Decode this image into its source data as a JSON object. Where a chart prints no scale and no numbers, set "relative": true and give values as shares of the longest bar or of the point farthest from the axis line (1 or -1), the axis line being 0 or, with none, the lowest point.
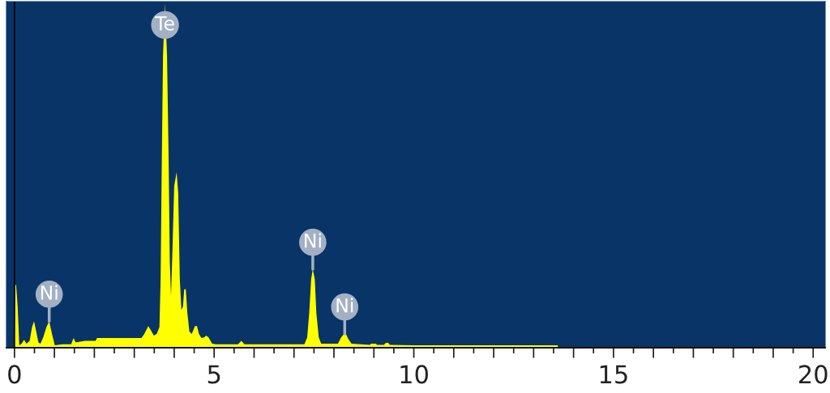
{
  "chart_data": {
    "type": "area",
    "relative": true,
    "x": [
      0.0,
      0.02,
      0.04,
      0.08,
      0.12,
      0.18,
      0.24,
      0.3,
      0.38,
      0.44,
      0.49,
      0.54,
      0.6,
      0.65,
      0.72,
      0.8,
      0.87,
      0.94,
      1.01,
      1.2,
      1.42,
      1.48,
      1.53,
      1.56,
      1.76,
      1.81,
      2.03,
      2.07,
      2.12,
      2.23,
      3.18,
      3.25,
      3.35,
      3.42,
      3.49,
      3.56,
      3.63,
      3.66,
      3.69,
      3.72,
      3.77,
      3.82,
      3.86,
      3.89,
      3.92,
      3.96,
      4.0,
      4.06,
      4.1,
      4.14,
      4.18,
      4.22,
      4.25,
      4.29,
      4.33,
      4.38,
      4.44,
      4.52,
      4.57,
      4.62,
      4.68,
      4.75,
      4.8,
      4.86,
      4.95,
      5.05,
      5.6,
      5.68,
      5.76,
      7.26,
      7.33,
      7.38,
      7.43,
      7.47,
      7.52,
      7.56,
      7.62,
      7.68,
      8.1,
      8.18,
      8.25,
      8.3,
      8.36,
      8.44,
      8.9,
      8.93,
      9.05,
      9.08,
      9.25,
      9.3,
      9.36,
      9.4,
      10.0,
      13.6,
      13.62,
      20.0
    ],
    "series": [
      {
        "color": "#ffff00",
        "values": [
          0.0,
          0.183,
          0.183,
          0.12,
          0.007,
          0.012,
          0.023,
          0.012,
          0.02,
          0.06,
          0.077,
          0.05,
          0.015,
          0.012,
          0.03,
          0.06,
          0.077,
          0.04,
          0.007,
          0.01,
          0.01,
          0.028,
          0.016,
          0.016,
          0.02,
          0.02,
          0.02,
          0.028,
          0.028,
          0.028,
          0.028,
          0.04,
          0.063,
          0.05,
          0.035,
          0.04,
          0.06,
          0.2,
          0.55,
          0.85,
          1.0,
          0.85,
          0.55,
          0.25,
          0.15,
          0.3,
          0.47,
          0.51,
          0.45,
          0.2,
          0.11,
          0.12,
          0.17,
          0.17,
          0.1,
          0.047,
          0.04,
          0.063,
          0.063,
          0.04,
          0.028,
          0.03,
          0.035,
          0.03,
          0.012,
          0.01,
          0.01,
          0.02,
          0.01,
          0.01,
          0.03,
          0.1,
          0.2,
          0.228,
          0.2,
          0.1,
          0.03,
          0.012,
          0.012,
          0.03,
          0.04,
          0.04,
          0.025,
          0.012,
          0.008,
          0.012,
          0.012,
          0.008,
          0.008,
          0.014,
          0.014,
          0.008,
          0.007,
          0.007,
          0.0,
          0.0
        ]
      }
    ],
    "xlim": [
      -0.2,
      20.3
    ],
    "xticks": [
      0,
      {
        "value": 1,
        "label": null
      },
      {
        "value": 2,
        "label": null
      },
      {
        "value": 3,
        "label": null
      },
      {
        "value": 4,
        "label": null
      },
      5,
      {
        "value": 6,
        "label": null
      },
      {
        "value": 7,
        "label": null
      },
      {
        "value": 8,
        "label": null
      },
      {
        "value": 9,
        "label": null
      },
      10,
      {
        "value": 11,
        "label": null
      },
      {
        "value": 12,
        "label": null
      },
      {
        "value": 13,
        "label": null
      },
      {
        "value": 14,
        "label": null
      },
      15,
      {
        "value": 16,
        "label": null
      },
      {
        "value": 17,
        "label": null
      },
      {
        "value": 18,
        "label": null
      },
      {
        "value": 19,
        "label": null
      },
      20
    ],
    "tick_labels": "x",
    "grid": false,
    "ref_lines": [
      {
        "axis": "x",
        "value": 0,
        "color": "#000000"
      }
    ],
    "annotations": [
      {
        "text": "Te",
        "x": 3.77,
        "y": 1.0
      },
      {
        "text": "Ni",
        "x": 0.87,
        "y": 0.077
      },
      {
        "text": "Ni",
        "x": 7.47,
        "y": 0.228
      },
      {
        "text": "Ni",
        "x": 8.27,
        "y": 0.04
      }
    ]
  }
}
